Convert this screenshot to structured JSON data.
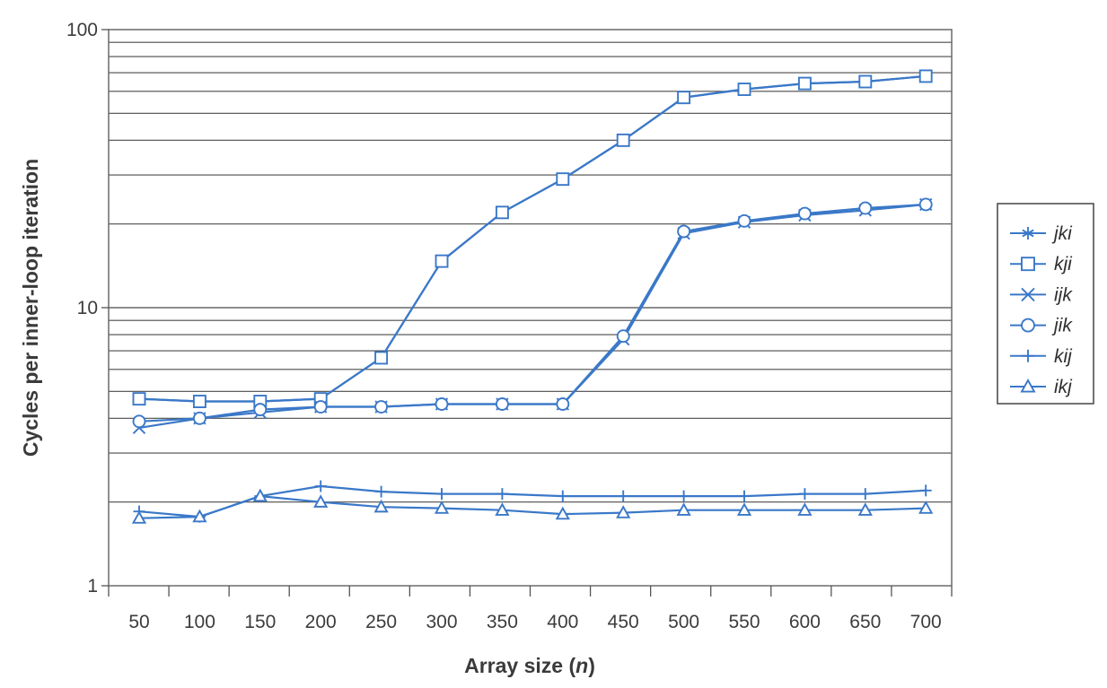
{
  "chart_data": {
    "type": "line",
    "xlabel": "Array size",
    "xlabel_var": "n",
    "ylabel": "Cycles per inner-loop iteration",
    "y_scale": "log",
    "ylim": [
      1,
      100
    ],
    "y_tick_labels": [
      "1",
      "10",
      "100"
    ],
    "x": [
      50,
      100,
      150,
      200,
      250,
      300,
      350,
      400,
      450,
      500,
      550,
      600,
      650,
      700
    ],
    "x_tick_labels": [
      "50",
      "100",
      "150",
      "200",
      "250",
      "300",
      "350",
      "400",
      "450",
      "500",
      "550",
      "600",
      "650",
      "700"
    ],
    "grid": "horizontal",
    "legend_position": "right",
    "series_color": "#3a78c8",
    "series": [
      {
        "name": "jki",
        "marker": "asterisk",
        "values": [
          4.7,
          4.6,
          4.6,
          4.7,
          6.6,
          14.7,
          22,
          29,
          40,
          57,
          61,
          64,
          65,
          68
        ]
      },
      {
        "name": "kji",
        "marker": "square",
        "values": [
          4.7,
          4.6,
          4.6,
          4.7,
          6.6,
          14.7,
          22,
          29,
          40,
          57,
          61,
          64,
          65,
          68
        ]
      },
      {
        "name": "ijk",
        "marker": "x",
        "values": [
          3.7,
          4.0,
          4.2,
          4.4,
          4.4,
          4.5,
          4.5,
          4.5,
          7.7,
          18.5,
          20.3,
          21.5,
          22.4,
          23.5
        ]
      },
      {
        "name": "jik",
        "marker": "circle",
        "values": [
          3.9,
          4.0,
          4.3,
          4.4,
          4.4,
          4.5,
          4.5,
          4.5,
          7.9,
          18.8,
          20.5,
          21.8,
          22.8,
          23.5
        ]
      },
      {
        "name": "kij",
        "marker": "plus",
        "values": [
          1.85,
          1.77,
          2.1,
          2.28,
          2.18,
          2.14,
          2.14,
          2.1,
          2.1,
          2.1,
          2.1,
          2.14,
          2.14,
          2.2
        ]
      },
      {
        "name": "ikj",
        "marker": "triangle",
        "values": [
          1.75,
          1.77,
          2.1,
          2.0,
          1.92,
          1.9,
          1.87,
          1.81,
          1.83,
          1.87,
          1.87,
          1.87,
          1.87,
          1.9
        ]
      }
    ]
  }
}
